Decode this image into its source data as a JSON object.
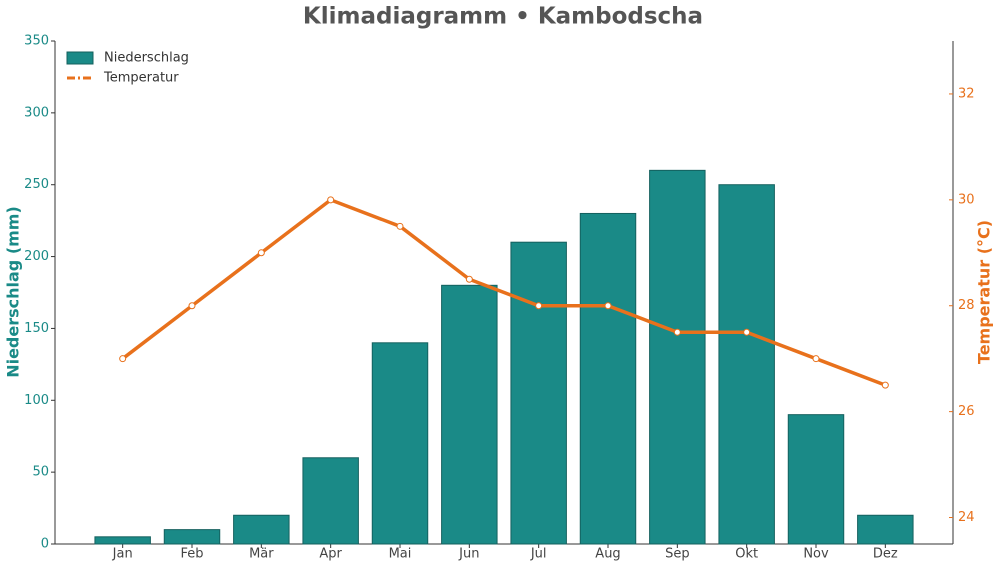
{
  "chart_data": {
    "type": "bar-line",
    "title": "Klimadiagramm • Kambodscha",
    "ylabel": "Niederschlag (mm)",
    "y2label": "Temperatur (°C)",
    "categories": [
      "Jan",
      "Feb",
      "Mär",
      "Apr",
      "Mai",
      "Jun",
      "Jul",
      "Aug",
      "Sep",
      "Okt",
      "Nov",
      "Dez"
    ],
    "series": [
      {
        "name": "Niederschlag",
        "type": "bar",
        "color": "#1a8a87",
        "values": [
          5,
          10,
          20,
          60,
          140,
          180,
          210,
          230,
          260,
          250,
          90,
          20
        ]
      },
      {
        "name": "Temperatur",
        "type": "line",
        "axis": "y2",
        "color": "#e8711c",
        "values": [
          27,
          28,
          29,
          30,
          29.5,
          28.5,
          28,
          28,
          27.5,
          27.5,
          27,
          26.5
        ]
      }
    ],
    "ylim": [
      0,
      350
    ],
    "yticks": [
      0,
      50,
      100,
      150,
      200,
      250,
      300,
      350
    ],
    "y2lim": [
      23.5,
      33
    ],
    "y2ticks": [
      24,
      26,
      28,
      30,
      32
    ],
    "legend": "upper-left"
  }
}
